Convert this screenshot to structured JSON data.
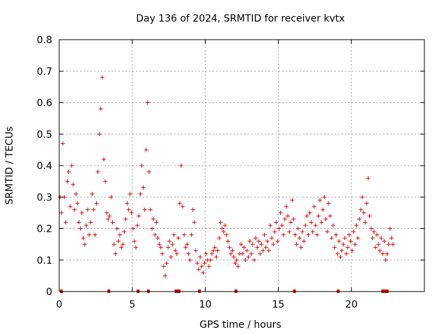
{
  "chart_data": {
    "type": "scatter",
    "title": "Day 136 of 2024, SRMTID for receiver kvtx",
    "xlabel": "GPS time / hours",
    "ylabel": "SRMTID / TECUs",
    "xlim": [
      0,
      25
    ],
    "ylim": [
      0,
      0.8
    ],
    "xticks": [
      0,
      5,
      10,
      15,
      20
    ],
    "yticks": [
      0,
      0.1,
      0.2,
      0.3,
      0.4,
      0.5,
      0.6,
      0.7,
      0.8
    ],
    "xtick_labels": [
      "0",
      "5",
      "10",
      "15",
      "20"
    ],
    "ytick_labels": [
      "0",
      "0.1",
      "0.2",
      "0.3",
      "0.4",
      "0.5",
      "0.6",
      "0.7",
      "0.8"
    ],
    "grid": true,
    "marker": "+",
    "color": "#e00000",
    "series": [
      {
        "name": "SRMTID",
        "x": [
          0.05,
          0.15,
          0.25,
          0.35,
          0.45,
          0.55,
          0.65,
          0.75,
          0.85,
          0.95,
          1.05,
          1.15,
          1.25,
          1.35,
          1.45,
          1.55,
          1.65,
          1.75,
          1.85,
          1.95,
          2.05,
          2.15,
          2.25,
          2.35,
          2.45,
          2.55,
          2.65,
          2.75,
          2.85,
          2.95,
          3.05,
          3.15,
          3.25,
          3.35,
          3.45,
          3.55,
          3.65,
          3.75,
          3.85,
          3.95,
          4.05,
          4.15,
          4.25,
          4.35,
          4.45,
          4.55,
          4.65,
          4.75,
          4.85,
          4.95,
          5.05,
          5.15,
          5.25,
          5.35,
          5.45,
          5.55,
          5.65,
          5.75,
          5.85,
          5.95,
          6.05,
          6.15,
          6.25,
          6.35,
          6.45,
          6.55,
          6.65,
          6.75,
          6.85,
          6.95,
          7.05,
          7.15,
          7.25,
          7.35,
          7.45,
          7.55,
          7.65,
          7.75,
          7.85,
          7.95,
          8.05,
          8.15,
          8.25,
          8.35,
          8.45,
          8.55,
          8.65,
          8.75,
          8.85,
          8.95,
          9.05,
          9.15,
          9.25,
          9.35,
          9.45,
          9.55,
          9.65,
          9.75,
          9.85,
          9.95,
          10.05,
          10.15,
          10.25,
          10.35,
          10.45,
          10.55,
          10.65,
          10.75,
          10.85,
          10.95,
          11.05,
          11.15,
          11.25,
          11.35,
          11.45,
          11.55,
          11.65,
          11.75,
          11.85,
          11.95,
          12.05,
          12.15,
          12.25,
          12.35,
          12.45,
          12.55,
          12.65,
          12.75,
          12.85,
          12.95,
          13.05,
          13.15,
          13.25,
          13.35,
          13.45,
          13.55,
          13.65,
          13.75,
          13.85,
          13.95,
          14.05,
          14.15,
          14.25,
          14.35,
          14.45,
          14.55,
          14.65,
          14.75,
          14.85,
          14.95,
          15.05,
          15.15,
          15.25,
          15.35,
          15.45,
          15.55,
          15.65,
          15.75,
          15.85,
          15.95,
          16.05,
          16.15,
          16.25,
          16.35,
          16.45,
          16.55,
          16.65,
          16.75,
          16.85,
          16.95,
          17.05,
          17.15,
          17.25,
          17.35,
          17.45,
          17.55,
          17.65,
          17.75,
          17.85,
          17.95,
          18.05,
          18.15,
          18.25,
          18.35,
          18.45,
          18.55,
          18.65,
          18.75,
          18.85,
          18.95,
          19.05,
          19.15,
          19.25,
          19.35,
          19.45,
          19.55,
          19.65,
          19.75,
          19.85,
          19.95,
          20.05,
          20.15,
          20.25,
          20.35,
          20.45,
          20.55,
          20.65,
          20.75,
          20.85,
          20.95,
          21.05,
          21.15,
          21.25,
          21.35,
          21.45,
          21.55,
          21.65,
          21.75,
          21.85,
          21.95,
          22.05,
          22.15,
          22.25,
          22.35,
          22.45,
          22.55,
          22.65,
          22.75,
          22.85
        ],
        "y": [
          0.3,
          0.25,
          0.47,
          0.3,
          0.22,
          0.35,
          0.38,
          0.27,
          0.4,
          0.34,
          0.26,
          0.31,
          0.28,
          0.22,
          0.2,
          0.25,
          0.17,
          0.15,
          0.21,
          0.26,
          0.18,
          0.22,
          0.31,
          0.26,
          0.18,
          0.28,
          0.38,
          0.5,
          0.58,
          0.68,
          0.42,
          0.35,
          0.25,
          0.23,
          0.24,
          0.3,
          0.22,
          0.15,
          0.12,
          0.2,
          0.16,
          0.18,
          0.14,
          0.15,
          0.19,
          0.23,
          0.28,
          0.26,
          0.31,
          0.25,
          0.2,
          0.16,
          0.14,
          0.21,
          0.24,
          0.31,
          0.4,
          0.33,
          0.26,
          0.45,
          0.6,
          0.38,
          0.26,
          0.2,
          0.23,
          0.18,
          0.22,
          0.17,
          0.15,
          0.14,
          0.12,
          0.08,
          0.05,
          0.09,
          0.14,
          0.16,
          0.11,
          0.15,
          0.18,
          0.13,
          0.12,
          0.17,
          0.28,
          0.4,
          0.27,
          0.18,
          0.14,
          0.15,
          0.12,
          0.1,
          0.18,
          0.26,
          0.22,
          0.13,
          0.09,
          0.07,
          0.11,
          0.08,
          0.06,
          0.09,
          0.12,
          0.1,
          0.08,
          0.1,
          0.12,
          0.13,
          0.14,
          0.11,
          0.13,
          0.17,
          0.22,
          0.2,
          0.19,
          0.21,
          0.18,
          0.16,
          0.14,
          0.12,
          0.13,
          0.11,
          0.09,
          0.1,
          0.08,
          0.12,
          0.15,
          0.12,
          0.14,
          0.1,
          0.13,
          0.11,
          0.16,
          0.12,
          0.15,
          0.1,
          0.17,
          0.14,
          0.16,
          0.12,
          0.15,
          0.13,
          0.18,
          0.14,
          0.16,
          0.13,
          0.21,
          0.17,
          0.15,
          0.19,
          0.22,
          0.16,
          0.2,
          0.25,
          0.21,
          0.18,
          0.23,
          0.27,
          0.24,
          0.19,
          0.22,
          0.29,
          0.23,
          0.18,
          0.15,
          0.2,
          0.17,
          0.14,
          0.19,
          0.16,
          0.21,
          0.24,
          0.18,
          0.25,
          0.22,
          0.19,
          0.27,
          0.21,
          0.18,
          0.24,
          0.29,
          0.22,
          0.26,
          0.3,
          0.23,
          0.19,
          0.28,
          0.24,
          0.17,
          0.21,
          0.14,
          0.18,
          0.12,
          0.16,
          0.11,
          0.13,
          0.15,
          0.17,
          0.12,
          0.14,
          0.18,
          0.16,
          0.13,
          0.19,
          0.15,
          0.21,
          0.17,
          0.23,
          0.26,
          0.3,
          0.25,
          0.22,
          0.28,
          0.36,
          0.24,
          0.2,
          0.17,
          0.19,
          0.14,
          0.18,
          0.15,
          0.13,
          0.17,
          0.12,
          0.16,
          0.1,
          0.12,
          0.15,
          0.2,
          0.17,
          0.15
        ],
        "baseline_markers_x": [
          0.15,
          3.4,
          5.4,
          6.1,
          8.0,
          8.1,
          8.2,
          9.6,
          12.1,
          16.1,
          19.1,
          22.15,
          22.25,
          22.35,
          22.45
        ]
      }
    ]
  }
}
